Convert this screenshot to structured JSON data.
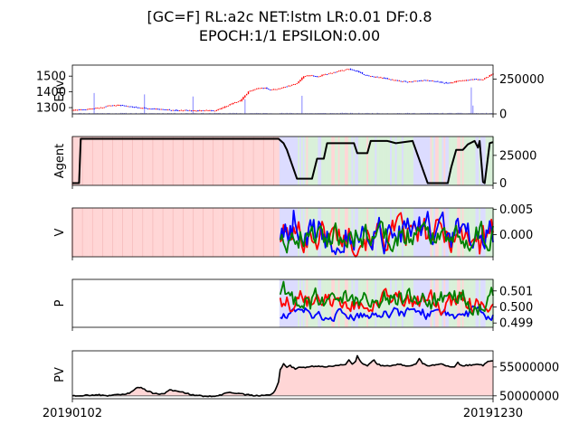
{
  "title_line1": "[GC=F] RL:a2c NET:lstm LR:0.01 DF:0.8",
  "title_line2": "EPOCH:1/1 EPSILON:0.00",
  "x_tick_labels": [
    "20190102",
    "20191230"
  ],
  "colors": {
    "red": "#ff0000",
    "blue": "#0000ff",
    "green": "#008000",
    "black": "#000000",
    "pink_shade": "#ffd6d6",
    "green_shade": "#d9f0d9",
    "blue_shade": "#dcdcff",
    "volume": "#9999ff"
  },
  "chart_data": [
    {
      "type": "candlestick",
      "ylabel": "Env.",
      "left_ticks": [
        "1300",
        "1400",
        "1500"
      ],
      "right_ticks": [
        "0",
        "250000"
      ],
      "price_range": [
        1260,
        1570
      ],
      "price_anchors": [
        [
          0,
          1283
        ],
        [
          8,
          1287
        ],
        [
          14,
          1296
        ],
        [
          18,
          1302
        ],
        [
          22,
          1313
        ],
        [
          28,
          1315
        ],
        [
          35,
          1305
        ],
        [
          42,
          1298
        ],
        [
          50,
          1290
        ],
        [
          55,
          1288
        ],
        [
          62,
          1283
        ],
        [
          68,
          1282
        ],
        [
          75,
          1280
        ],
        [
          80,
          1282
        ],
        [
          85,
          1280
        ],
        [
          90,
          1300
        ],
        [
          95,
          1325
        ],
        [
          100,
          1343
        ],
        [
          105,
          1400
        ],
        [
          110,
          1420
        ],
        [
          115,
          1425
        ],
        [
          118,
          1412
        ],
        [
          122,
          1418
        ],
        [
          126,
          1430
        ],
        [
          130,
          1440
        ],
        [
          134,
          1455
        ],
        [
          138,
          1500
        ],
        [
          142,
          1505
        ],
        [
          146,
          1495
        ],
        [
          150,
          1510
        ],
        [
          155,
          1520
        ],
        [
          160,
          1535
        ],
        [
          165,
          1545
        ],
        [
          170,
          1530
        ],
        [
          175,
          1505
        ],
        [
          180,
          1495
        ],
        [
          185,
          1490
        ],
        [
          190,
          1478
        ],
        [
          195,
          1470
        ],
        [
          200,
          1462
        ],
        [
          205,
          1470
        ],
        [
          210,
          1475
        ],
        [
          215,
          1470
        ],
        [
          220,
          1460
        ],
        [
          225,
          1455
        ],
        [
          230,
          1468
        ],
        [
          235,
          1475
        ],
        [
          240,
          1480
        ],
        [
          245,
          1480
        ],
        [
          250,
          1510
        ],
        [
          251,
          1515
        ]
      ],
      "volume_range": [
        0,
        350000
      ],
      "volume_spikes": [
        [
          13,
          150000
        ],
        [
          43,
          140000
        ],
        [
          72,
          125000
        ],
        [
          103,
          105000
        ],
        [
          137,
          130000
        ],
        [
          161,
          9000
        ],
        [
          238,
          190000
        ],
        [
          239,
          60000
        ]
      ]
    },
    {
      "type": "line",
      "ylabel": "Agent",
      "right_ticks": [
        "0",
        "25000"
      ],
      "y_range": [
        -2000,
        42000
      ],
      "segments": [
        [
          0,
          0
        ],
        [
          4,
          0
        ],
        [
          5,
          40000
        ],
        [
          123,
          40000
        ],
        [
          126,
          36000
        ],
        [
          128,
          30000
        ],
        [
          134,
          4000
        ],
        [
          143,
          4000
        ],
        [
          146,
          22000
        ],
        [
          150,
          22000
        ],
        [
          152,
          36000
        ],
        [
          168,
          36000
        ],
        [
          170,
          27000
        ],
        [
          176,
          27000
        ],
        [
          178,
          38000
        ],
        [
          188,
          38000
        ],
        [
          193,
          36000
        ],
        [
          203,
          38000
        ],
        [
          208,
          17000
        ],
        [
          212,
          0
        ],
        [
          216,
          0
        ],
        [
          219,
          0
        ],
        [
          221,
          0
        ],
        [
          224,
          0
        ],
        [
          226,
          14000
        ],
        [
          229,
          30000
        ],
        [
          233,
          30000
        ],
        [
          236,
          35000
        ],
        [
          240,
          38000
        ],
        [
          242,
          32000
        ],
        [
          243,
          38000
        ],
        [
          245,
          1000
        ],
        [
          246,
          0
        ],
        [
          249,
          36000
        ],
        [
          251,
          37000
        ]
      ]
    },
    {
      "type": "line",
      "ylabel": "V",
      "right_ticks": [
        "0.000",
        "0.005"
      ],
      "y_range": [
        -0.0044,
        0.0053
      ],
      "series_count": 3
    },
    {
      "type": "line",
      "ylabel": "P",
      "right_ticks": [
        "0.499",
        "0.500",
        "0.501"
      ],
      "y_range": [
        0.49873,
        0.50172
      ],
      "series_count": 3
    },
    {
      "type": "line",
      "ylabel": "PV",
      "right_ticks": [
        "50000000",
        "55000000"
      ],
      "y_range": [
        49500000,
        57800000
      ],
      "baseline": 50000000,
      "anchors": [
        [
          0,
          50000000
        ],
        [
          10,
          50100000
        ],
        [
          15,
          50200000
        ],
        [
          20,
          50000000
        ],
        [
          28,
          50200000
        ],
        [
          34,
          50500000
        ],
        [
          38,
          51300000
        ],
        [
          40,
          51500000
        ],
        [
          42,
          51300000
        ],
        [
          45,
          50800000
        ],
        [
          48,
          50500000
        ],
        [
          52,
          50200000
        ],
        [
          55,
          50400000
        ],
        [
          58,
          51000000
        ],
        [
          62,
          50800000
        ],
        [
          66,
          50600000
        ],
        [
          70,
          50300000
        ],
        [
          74,
          50100000
        ],
        [
          80,
          49900000
        ],
        [
          86,
          50000000
        ],
        [
          90,
          50300000
        ],
        [
          94,
          50600000
        ],
        [
          98,
          50400000
        ],
        [
          104,
          50200000
        ],
        [
          110,
          50000000
        ],
        [
          116,
          50100000
        ],
        [
          119,
          50300000
        ],
        [
          121,
          50900000
        ],
        [
          123,
          52500000
        ],
        [
          124,
          54500000
        ],
        [
          126,
          55500000
        ],
        [
          128,
          55000000
        ],
        [
          130,
          55200000
        ],
        [
          133,
          54700000
        ],
        [
          136,
          55000000
        ],
        [
          140,
          54900000
        ],
        [
          145,
          55200000
        ],
        [
          150,
          55000000
        ],
        [
          155,
          55200000
        ],
        [
          160,
          55300000
        ],
        [
          163,
          55400000
        ],
        [
          165,
          56200000
        ],
        [
          167,
          55600000
        ],
        [
          169,
          55900000
        ],
        [
          170,
          57000000
        ],
        [
          171,
          56300000
        ],
        [
          173,
          55500000
        ],
        [
          176,
          55200000
        ],
        [
          180,
          56200000
        ],
        [
          182,
          55500000
        ],
        [
          185,
          55200000
        ],
        [
          190,
          55100000
        ],
        [
          195,
          55500000
        ],
        [
          200,
          55200000
        ],
        [
          205,
          55500000
        ],
        [
          207,
          56400000
        ],
        [
          209,
          55600000
        ],
        [
          212,
          55200000
        ],
        [
          216,
          55400000
        ],
        [
          220,
          55500000
        ],
        [
          224,
          55200000
        ],
        [
          228,
          55000000
        ],
        [
          230,
          55800000
        ],
        [
          232,
          55200000
        ],
        [
          236,
          55300000
        ],
        [
          240,
          55400000
        ],
        [
          245,
          55300000
        ],
        [
          248,
          56000000
        ],
        [
          251,
          56100000
        ]
      ]
    }
  ]
}
